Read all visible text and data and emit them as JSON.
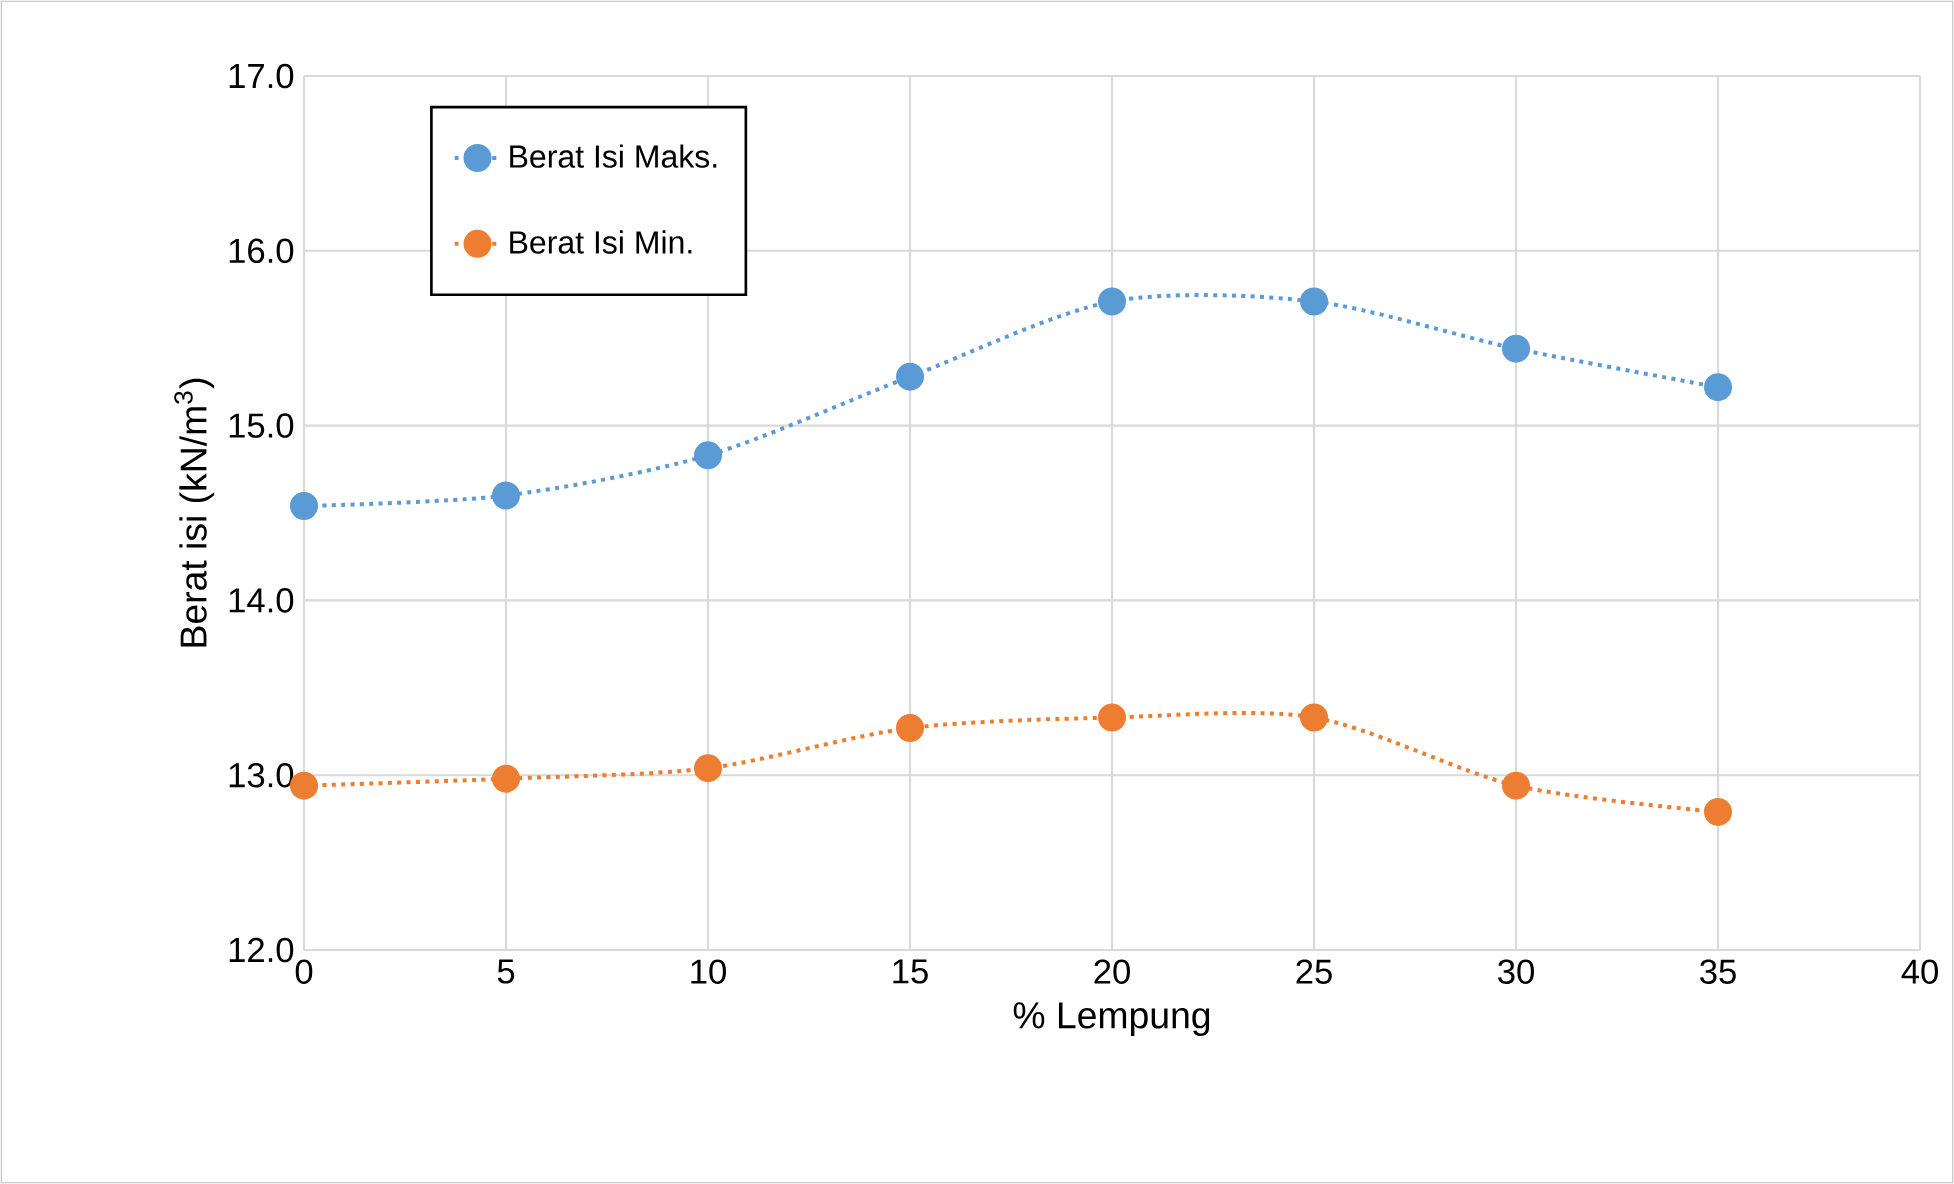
{
  "chart_data": {
    "type": "line",
    "xlabel": "% Lempung",
    "ylabel": "Berat isi (kN/m$^{3}$)",
    "x": [
      0,
      5,
      10,
      15,
      20,
      25,
      30,
      35
    ],
    "series": [
      {
        "name": "Berat Isi Maks.",
        "color": "#5b9bd5",
        "values": [
          14.54,
          14.6,
          14.83,
          15.28,
          15.71,
          15.71,
          15.44,
          15.22
        ]
      },
      {
        "name": "Berat Isi Min.",
        "color": "#ed7d31",
        "values": [
          12.94,
          12.98,
          13.04,
          13.27,
          13.33,
          13.33,
          12.94,
          12.79
        ]
      }
    ],
    "xlim": [
      0,
      40
    ],
    "xticks": [
      0,
      5,
      10,
      15,
      20,
      25,
      30,
      35,
      40
    ],
    "ylim": [
      12,
      17
    ],
    "yticks": [
      {
        "value": 12,
        "label": "12.0"
      },
      {
        "value": 13,
        "label": "13.0"
      },
      {
        "value": 14,
        "label": "14.0"
      },
      {
        "value": 15,
        "label": "15.0"
      },
      {
        "value": 16,
        "label": "16.0"
      },
      {
        "value": 17,
        "label": "17.0"
      }
    ],
    "grid": true,
    "legend": "top left",
    "marker": "circle",
    "line_style": "dotted"
  }
}
